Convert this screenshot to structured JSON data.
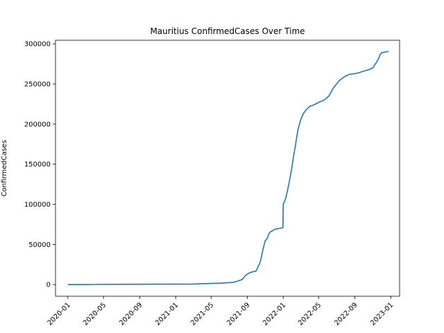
{
  "chart_data": {
    "type": "line",
    "title": "Mauritius  ConfirmedCases Over Time",
    "xlabel": "",
    "ylabel": "ConfirmedCases",
    "xlim": [
      "2019-11-20",
      "2023-01-31"
    ],
    "ylim": [
      -14500,
      304500
    ],
    "grid": false,
    "legend": "none",
    "line_color": "#1f77b4",
    "x_ticks": [
      "2020-01",
      "2020-05",
      "2020-09",
      "2021-01",
      "2021-05",
      "2021-09",
      "2022-01",
      "2022-05",
      "2022-09",
      "2023-01"
    ],
    "y_ticks": [
      "0",
      "50000",
      "100000",
      "150000",
      "200000",
      "250000",
      "300000"
    ],
    "series": [
      {
        "name": "",
        "x": [
          "2020-01-01",
          "2020-03-18",
          "2020-04-10",
          "2020-06-01",
          "2020-12-01",
          "2021-03-01",
          "2021-04-01",
          "2021-06-01",
          "2021-07-15",
          "2021-08-01",
          "2021-08-15",
          "2021-08-25",
          "2021-09-05",
          "2021-09-15",
          "2021-10-01",
          "2021-10-15",
          "2021-10-25",
          "2021-11-01",
          "2021-11-05",
          "2021-11-08",
          "2021-11-12",
          "2021-11-16",
          "2021-11-20",
          "2021-11-25",
          "2021-12-01",
          "2021-12-10",
          "2021-12-20",
          "2021-12-31",
          "2022-01-01",
          "2022-01-10",
          "2022-01-20",
          "2022-01-30",
          "2022-02-05",
          "2022-02-10",
          "2022-02-15",
          "2022-02-20",
          "2022-03-01",
          "2022-03-10",
          "2022-03-20",
          "2022-04-01",
          "2022-04-15",
          "2022-05-01",
          "2022-05-20",
          "2022-06-05",
          "2022-06-20",
          "2022-07-01",
          "2022-07-10",
          "2022-07-20",
          "2022-08-01",
          "2022-08-15",
          "2022-09-01",
          "2022-09-15",
          "2022-10-01",
          "2022-10-20",
          "2022-11-01",
          "2022-11-10",
          "2022-11-20",
          "2022-11-25",
          "2022-12-01",
          "2022-12-15",
          "2022-12-25"
        ],
        "y": [
          0,
          80,
          300,
          340,
          560,
          700,
          1100,
          1800,
          2700,
          4500,
          6500,
          11000,
          14000,
          15500,
          17000,
          28000,
          45000,
          55000,
          56000,
          58000,
          62000,
          65000,
          66000,
          67000,
          68500,
          69500,
          70000,
          71000,
          100000,
          108000,
          125000,
          145000,
          160000,
          170000,
          182000,
          193000,
          205000,
          213000,
          218000,
          222000,
          224000,
          227000,
          230000,
          235000,
          245000,
          250000,
          254000,
          257000,
          260000,
          262000,
          263000,
          264000,
          266000,
          268000,
          270000,
          275000,
          281000,
          286000,
          289000,
          290000,
          290500
        ]
      }
    ]
  }
}
